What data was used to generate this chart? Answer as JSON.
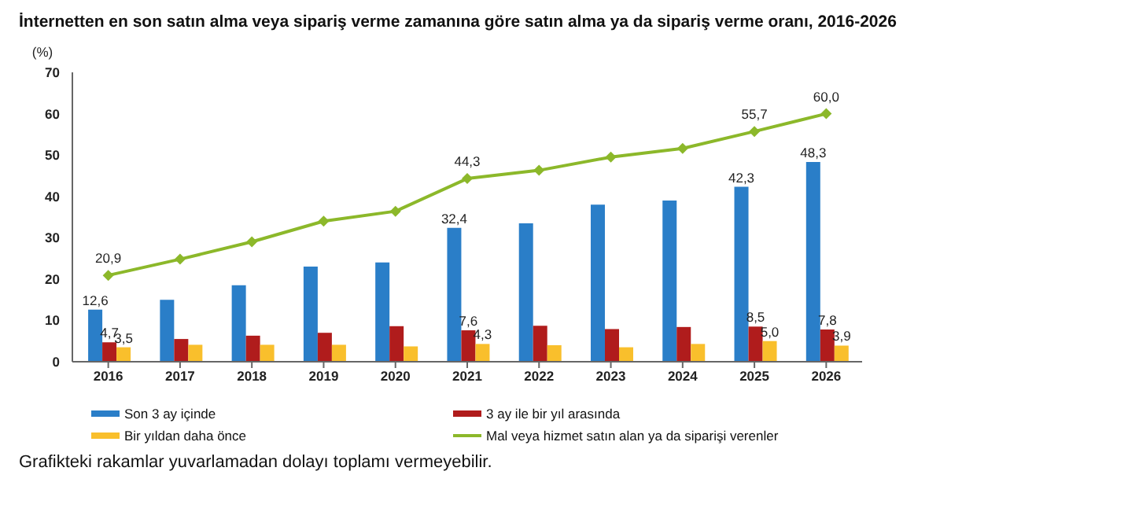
{
  "chart_data": {
    "type": "bar",
    "title": "İnternetten en son satın alma veya sipariş verme zamanına göre satın alma ya da sipariş verme oranı, 2016-2026",
    "ylabel": "(%)",
    "categories": [
      "2016",
      "2017",
      "2018",
      "2019",
      "2020",
      "2021",
      "2022",
      "2023",
      "2024",
      "2025",
      "2026"
    ],
    "series": [
      {
        "name": "Son 3 ay içinde",
        "color": "#2a7ec8",
        "values": [
          12.6,
          15.0,
          18.5,
          23.0,
          24.0,
          32.4,
          33.5,
          38.0,
          39.0,
          42.3,
          48.3
        ],
        "value_labels": [
          "12,6",
          null,
          null,
          null,
          null,
          "32,4",
          null,
          null,
          null,
          "42,3",
          "48,3"
        ]
      },
      {
        "name": "3 ay ile bir yıl arasında",
        "color": "#b01c1c",
        "values": [
          4.7,
          5.5,
          6.3,
          7.0,
          8.6,
          7.6,
          8.7,
          7.9,
          8.4,
          8.5,
          7.8
        ],
        "value_labels": [
          "4,7",
          null,
          null,
          null,
          null,
          "7,6",
          null,
          null,
          null,
          "8,5",
          "7,8"
        ]
      },
      {
        "name": "Bir yıldan daha önce",
        "color": "#f9bf2c",
        "values": [
          3.5,
          4.1,
          4.1,
          4.1,
          3.7,
          4.3,
          4.0,
          3.5,
          4.3,
          5.0,
          3.9
        ],
        "value_labels": [
          "3,5",
          null,
          null,
          null,
          null,
          "4,3",
          null,
          null,
          null,
          "5,0",
          "3,9"
        ]
      },
      {
        "name": "Mal veya hizmet satın alan ya da siparişi verenler",
        "type": "line",
        "color": "#8cb82a",
        "values": [
          20.9,
          24.8,
          29.0,
          34.0,
          36.4,
          44.3,
          46.3,
          49.5,
          51.6,
          55.7,
          60.0
        ],
        "value_labels": [
          "20,9",
          null,
          null,
          null,
          null,
          "44,3",
          null,
          null,
          null,
          "55,7",
          "60,0"
        ]
      }
    ],
    "ylim": [
      0,
      70
    ],
    "yticks": [
      0,
      10,
      20,
      30,
      40,
      50,
      60,
      70
    ],
    "grid": false,
    "legend": "bottom",
    "marker": "diamond",
    "line_style": "solid",
    "annotations": [
      "Grafikteki rakamlar yuvarlamadan dolayı toplamı vermeyebilir."
    ]
  }
}
